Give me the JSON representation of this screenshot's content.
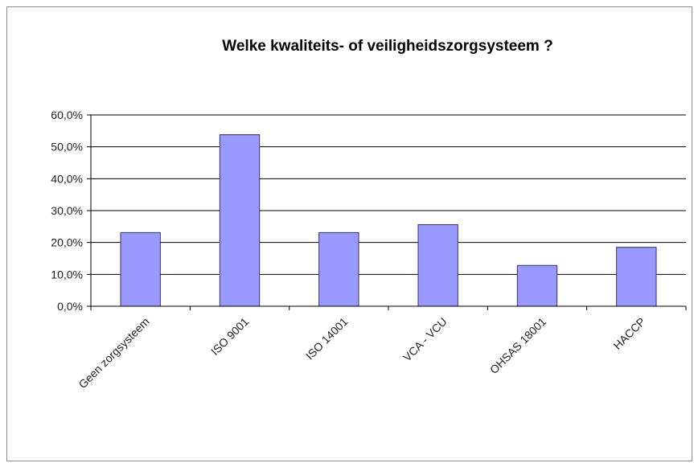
{
  "chart_data": {
    "type": "bar",
    "title": "Welke kwaliteits- of veiligheidszorgsysteem ?",
    "categories": [
      "Geen zorgsysteem",
      "ISO 9001",
      "ISO 14001",
      "VCA - VCU",
      "OHSAS 18001",
      "HACCP"
    ],
    "values": [
      23.1,
      53.8,
      23.1,
      25.6,
      12.8,
      18.5
    ],
    "ylim": [
      0,
      60
    ],
    "yticks": [
      "0,0%",
      "10,0%",
      "20,0%",
      "30,0%",
      "40,0%",
      "50,0%",
      "60,0%"
    ],
    "grid": true,
    "legend": "none",
    "bar_color": "#9999ff",
    "bar_border": "#333366"
  }
}
